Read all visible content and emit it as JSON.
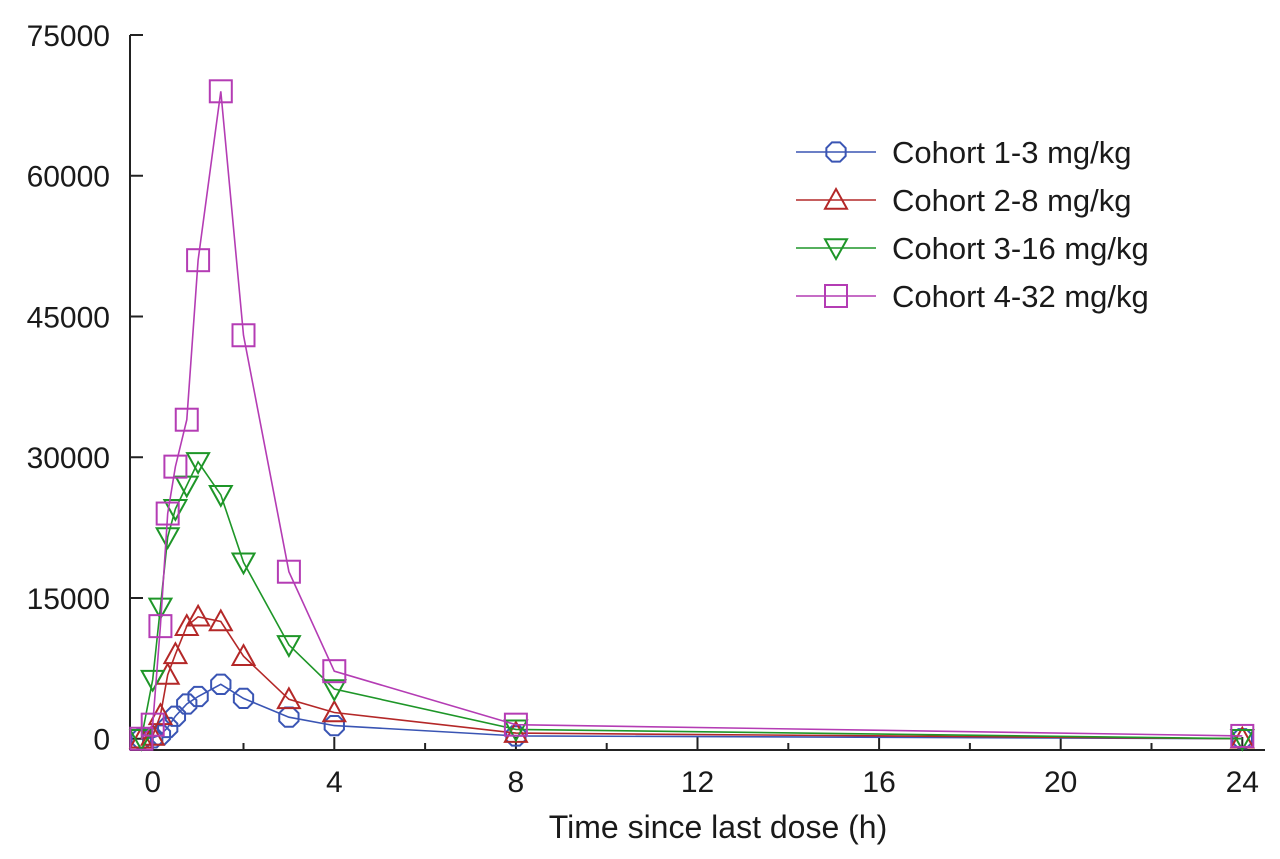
{
  "chart_data": {
    "type": "line",
    "title": "",
    "xlabel": "Time since last dose (h)",
    "ylabel": "",
    "xlim": [
      -0.5,
      24.5
    ],
    "ylim": [
      -1200,
      75000
    ],
    "x_ticks": [
      0,
      4,
      8,
      12,
      16,
      20,
      24
    ],
    "y_ticks": [
      0,
      15000,
      30000,
      45000,
      60000,
      75000
    ],
    "x_tick_labels": [
      "0",
      "4",
      "8",
      "12",
      "16",
      "20",
      "24"
    ],
    "y_tick_labels": [
      "0",
      "15000",
      "30000",
      "45000",
      "60000",
      "75000"
    ],
    "grid": false,
    "legend_position": "top-right",
    "series": [
      {
        "name": "Cohort 1-3 mg/kg",
        "color": "#3a55b4",
        "marker": "octagon",
        "x": [
          -0.25,
          0,
          0.17,
          0.33,
          0.5,
          0.75,
          1,
          1.5,
          2,
          3,
          4,
          8,
          24
        ],
        "y": [
          0,
          100,
          400,
          1200,
          2400,
          3700,
          4500,
          5800,
          4300,
          2300,
          1400,
          300,
          0
        ]
      },
      {
        "name": "Cohort 2-8 mg/kg",
        "color": "#b42828",
        "marker": "triangle-up",
        "x": [
          -0.25,
          0,
          0.17,
          0.33,
          0.5,
          0.75,
          1,
          1.5,
          2,
          3,
          4,
          8,
          24
        ],
        "y": [
          0,
          300,
          2500,
          6800,
          9000,
          12000,
          13000,
          12500,
          8800,
          4200,
          2800,
          600,
          0
        ]
      },
      {
        "name": "Cohort 3-16 mg/kg",
        "color": "#1e9628",
        "marker": "triangle-down",
        "x": [
          -0.25,
          0,
          0.17,
          0.33,
          0.5,
          0.75,
          1,
          1.5,
          2,
          3,
          4,
          8,
          24
        ],
        "y": [
          0,
          6300,
          14000,
          21500,
          24500,
          27000,
          29500,
          26000,
          18800,
          10000,
          5300,
          1000,
          0
        ]
      },
      {
        "name": "Cohort 4-32 mg/kg",
        "color": "#b43cb4",
        "marker": "square",
        "x": [
          -0.25,
          0,
          0.17,
          0.33,
          0.5,
          0.75,
          1,
          1.5,
          2,
          3,
          4,
          8,
          24
        ],
        "y": [
          0,
          1500,
          12000,
          24000,
          29000,
          34000,
          51000,
          69000,
          43000,
          17800,
          7200,
          1500,
          300
        ]
      }
    ]
  }
}
